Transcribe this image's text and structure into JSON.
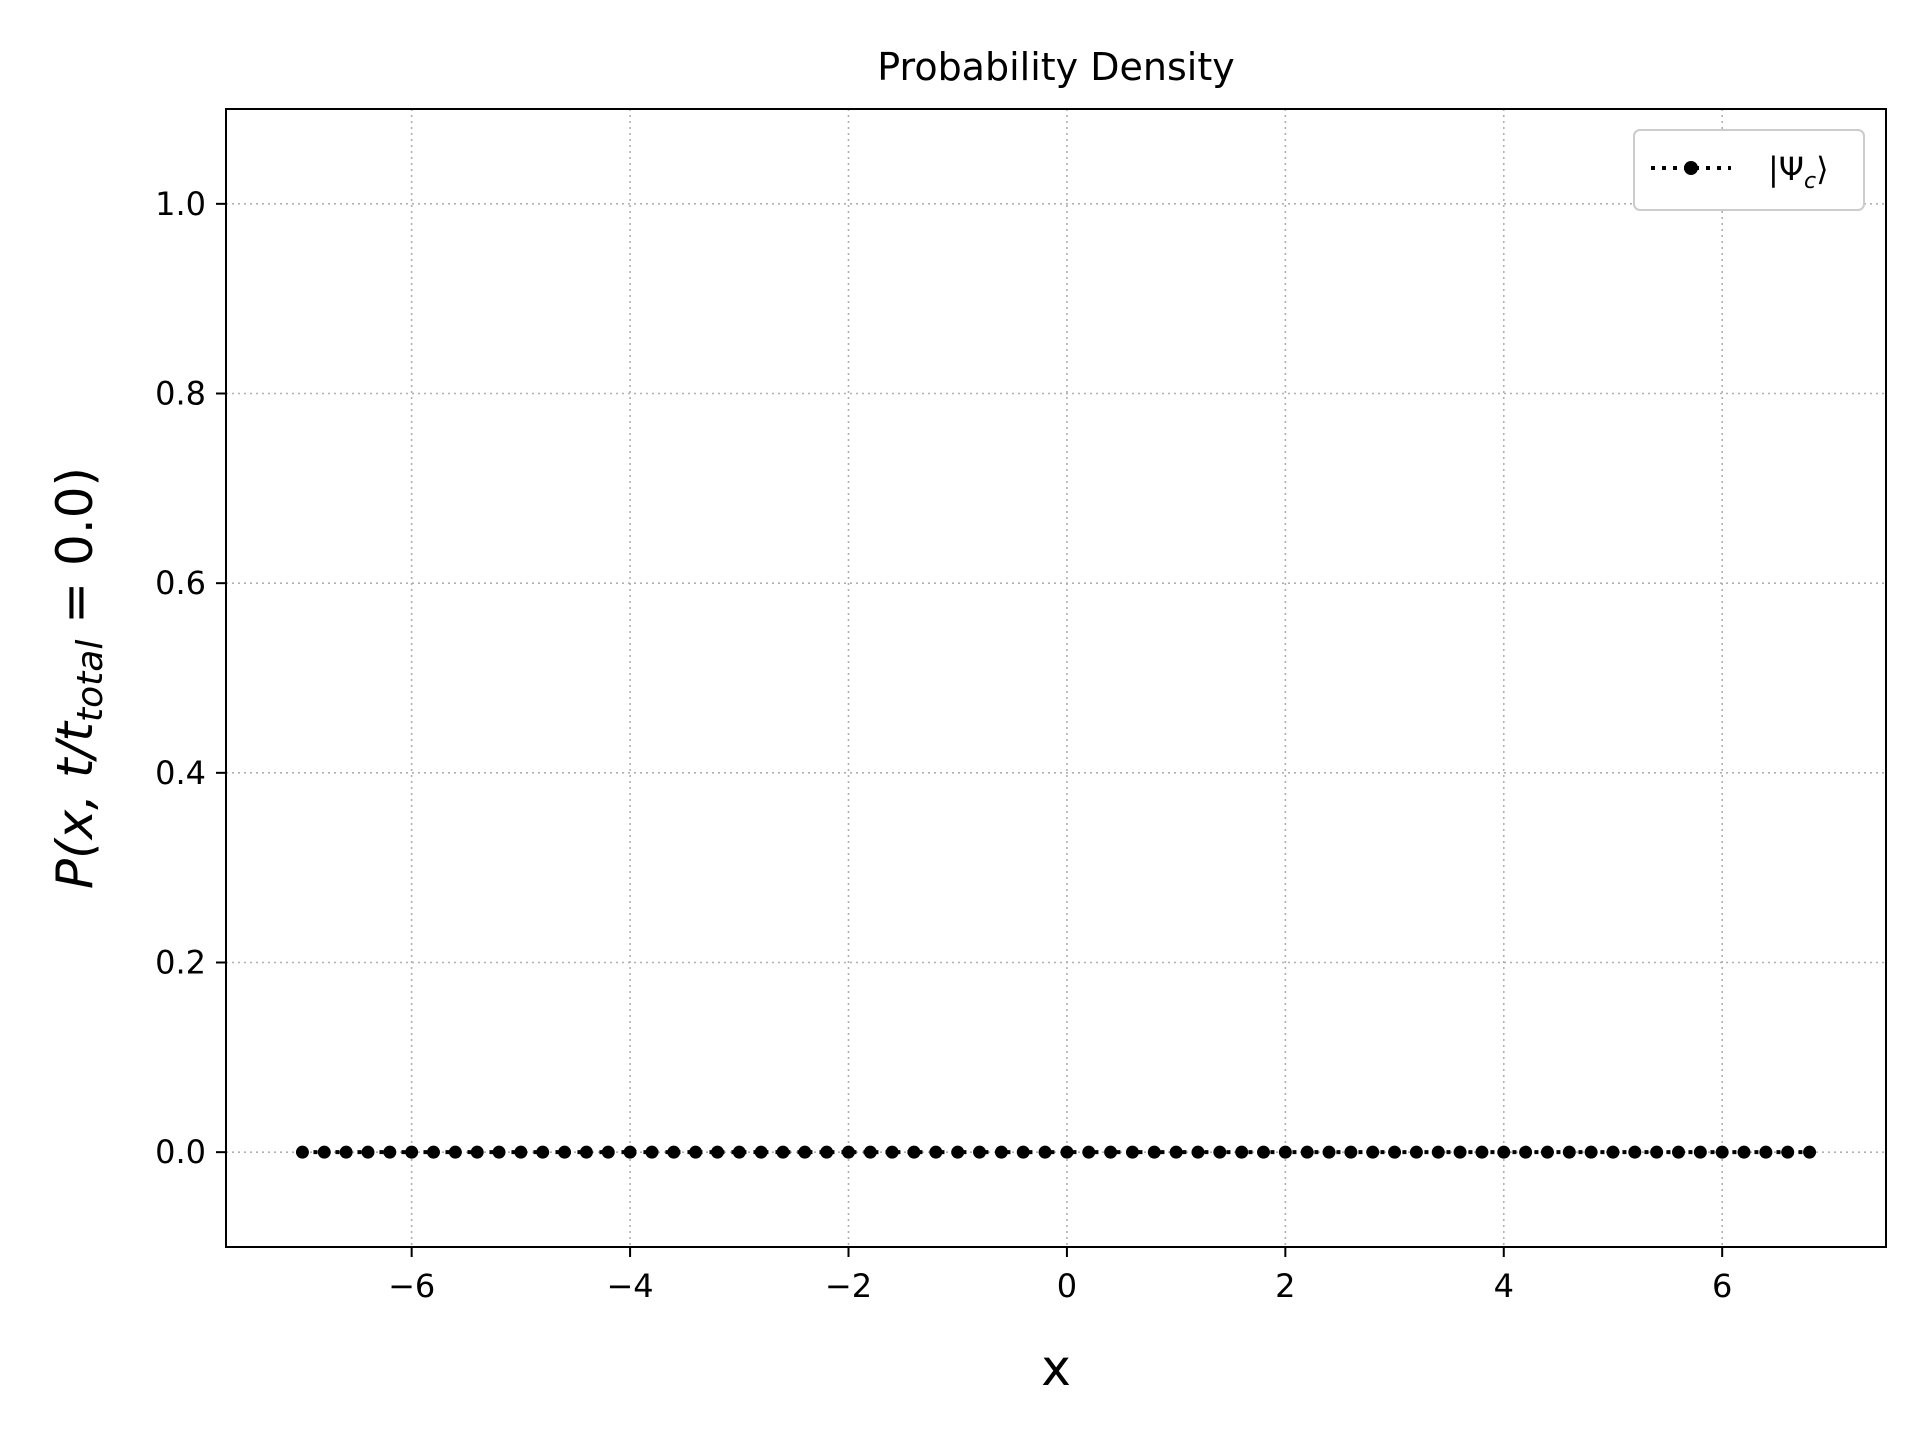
{
  "chart_data": {
    "type": "line",
    "title": "Probability Density",
    "xlabel": "x",
    "ylabel": {
      "main": "P(x, t/t",
      "sub": "total",
      "tail": " = 0.0)"
    },
    "xlim": [
      -7.7,
      7.5
    ],
    "ylim": [
      -0.1,
      1.1
    ],
    "x_ticks": [
      -6,
      -4,
      -2,
      0,
      2,
      4,
      6
    ],
    "x_tick_labels": [
      "−6",
      "−4",
      "−2",
      "0",
      "2",
      "4",
      "6"
    ],
    "y_ticks": [
      0.0,
      0.2,
      0.4,
      0.6,
      0.8,
      1.0
    ],
    "y_tick_labels": [
      "0.0",
      "0.2",
      "0.4",
      "0.6",
      "0.8",
      "1.0"
    ],
    "grid": true,
    "legend_position": "top-right",
    "series": [
      {
        "name": "|Ψc⟩",
        "legend": {
          "prefix": "|Ψ",
          "sub": "c",
          "suffix": "⟩"
        },
        "color": "#000000",
        "line_style": "dotted",
        "marker": "circle",
        "x_start": -7.0,
        "x_step": 0.2,
        "count": 70,
        "y_constant": 0.0
      }
    ]
  }
}
